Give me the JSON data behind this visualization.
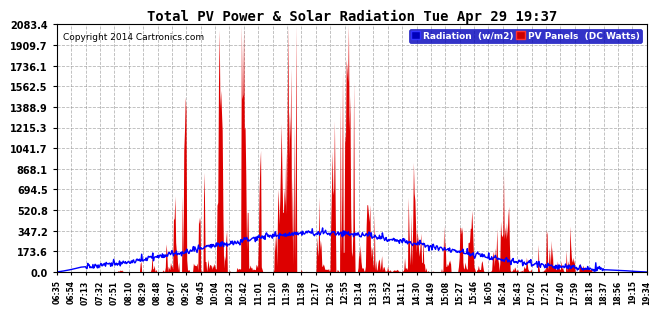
{
  "title": "Total PV Power & Solar Radiation Tue Apr 29 19:37",
  "copyright_text": "Copyright 2014 Cartronics.com",
  "legend_labels": [
    "Radiation  (w/m2)",
    "PV Panels  (DC Watts)"
  ],
  "yticks": [
    0.0,
    173.6,
    347.2,
    520.8,
    694.5,
    868.1,
    1041.7,
    1215.3,
    1388.9,
    1562.5,
    1736.1,
    1909.7,
    2083.4
  ],
  "ymax": 2083.4,
  "ymin": 0.0,
  "x_tick_labels": [
    "06:35",
    "06:54",
    "07:13",
    "07:32",
    "07:51",
    "08:10",
    "08:29",
    "08:48",
    "09:07",
    "09:26",
    "09:45",
    "10:04",
    "10:23",
    "10:42",
    "11:01",
    "11:20",
    "11:39",
    "11:58",
    "12:17",
    "12:36",
    "12:55",
    "13:14",
    "13:33",
    "13:52",
    "14:11",
    "14:30",
    "14:49",
    "15:08",
    "15:27",
    "15:46",
    "16:05",
    "16:24",
    "16:43",
    "17:02",
    "17:21",
    "17:40",
    "17:59",
    "18:18",
    "18:37",
    "18:56",
    "19:15",
    "19:34"
  ],
  "bg_color": "#ffffff",
  "plot_bg_color": "#ffffff",
  "grid_color": "#999999",
  "fill_color": "#dd0000",
  "line_color": "#0000ff",
  "line_width": 1.0,
  "border_color": "#000000"
}
